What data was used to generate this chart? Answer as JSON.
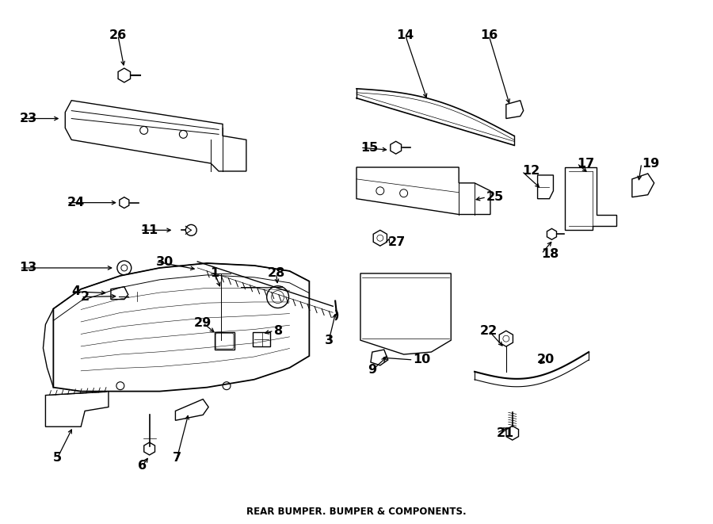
{
  "title": "REAR BUMPER. BUMPER & COMPONENTS.",
  "bg_color": "#ffffff",
  "line_color": "#000000",
  "text_color": "#000000",
  "fig_width": 9.0,
  "fig_height": 6.61,
  "dpi": 100
}
